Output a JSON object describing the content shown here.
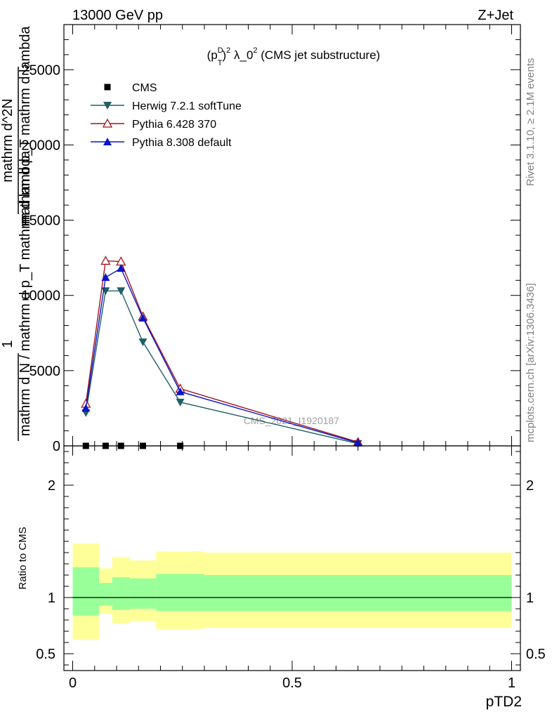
{
  "header": {
    "left": "13000 GeV pp",
    "right": "Z+Jet"
  },
  "side_text": {
    "top": "Rivet 3.1.10, ≥ 2.1M events",
    "bottom": "mcplots.cern.ch [arXiv:1306.3436]"
  },
  "chart_data": [
    {
      "type": "line",
      "title": "(p_T^D)^2 λ_0^2 (CMS jet substructure)",
      "watermark": "CMS_2021_I1920187",
      "ylabel_lines": [
        "1",
        "mathrm d N / mathrm d p_T mathrm d lambda",
        "mathrm d^2N",
        "mathrm d p_T mathrm d lambda"
      ],
      "xlim": [
        -0.02,
        1.02
      ],
      "ylim": [
        0,
        28000
      ],
      "yticks": [
        0,
        5000,
        10000,
        15000,
        20000,
        25000
      ],
      "ytick_labels": [
        "0",
        "5000",
        "10000",
        "15000",
        "20000",
        "25000"
      ],
      "legend_position": "top-left",
      "series": [
        {
          "name": "CMS",
          "marker": "square",
          "color": "#000000",
          "line": false,
          "x": [
            0.03,
            0.075,
            0.11,
            0.16,
            0.245
          ],
          "y": [
            0,
            0,
            0,
            0,
            0
          ]
        },
        {
          "name": "Herwig 7.2.1 softTune",
          "marker": "triangle-down-filled",
          "color": "#1f5f66",
          "line": true,
          "x": [
            0.03,
            0.075,
            0.11,
            0.16,
            0.245,
            0.65
          ],
          "y": [
            2200,
            10300,
            10300,
            6900,
            2900,
            150
          ]
        },
        {
          "name": "Pythia 6.428 370",
          "marker": "triangle-up-open",
          "color": "#a0141e",
          "line": true,
          "x": [
            0.03,
            0.075,
            0.11,
            0.16,
            0.245,
            0.65
          ],
          "y": [
            2800,
            12300,
            12250,
            8600,
            3800,
            250
          ]
        },
        {
          "name": "Pythia 8.308 default",
          "marker": "triangle-up-filled",
          "color": "#0a14c8",
          "line": true,
          "x": [
            0.03,
            0.075,
            0.11,
            0.16,
            0.245,
            0.65
          ],
          "y": [
            2500,
            11200,
            11800,
            8500,
            3600,
            200
          ]
        }
      ]
    },
    {
      "type": "area",
      "ylabel": "Ratio to CMS",
      "xlabel": "pTD2",
      "xlim": [
        -0.02,
        1.02
      ],
      "ylim": [
        0.35,
        2.35
      ],
      "yticks": [
        0.5,
        1,
        2
      ],
      "ytick_labels": [
        "0.5",
        "1",
        "2"
      ],
      "xticks": [
        0,
        0.5,
        1
      ],
      "xtick_labels": [
        "0",
        "0.5",
        "1"
      ],
      "reference_line": 1,
      "bands": {
        "edges": [
          0.0,
          0.06,
          0.09,
          0.13,
          0.19,
          0.3,
          1.0
        ],
        "inner_color": "#99ff99",
        "outer_color": "#ffff99",
        "inner_low": [
          0.84,
          0.93,
          0.89,
          0.9,
          0.88,
          0.88
        ],
        "inner_high": [
          1.27,
          1.13,
          1.18,
          1.17,
          1.21,
          1.2
        ],
        "outer_low": [
          0.63,
          0.86,
          0.77,
          0.79,
          0.72,
          0.73
        ],
        "outer_high": [
          1.48,
          1.26,
          1.36,
          1.33,
          1.41,
          1.4
        ]
      }
    }
  ]
}
